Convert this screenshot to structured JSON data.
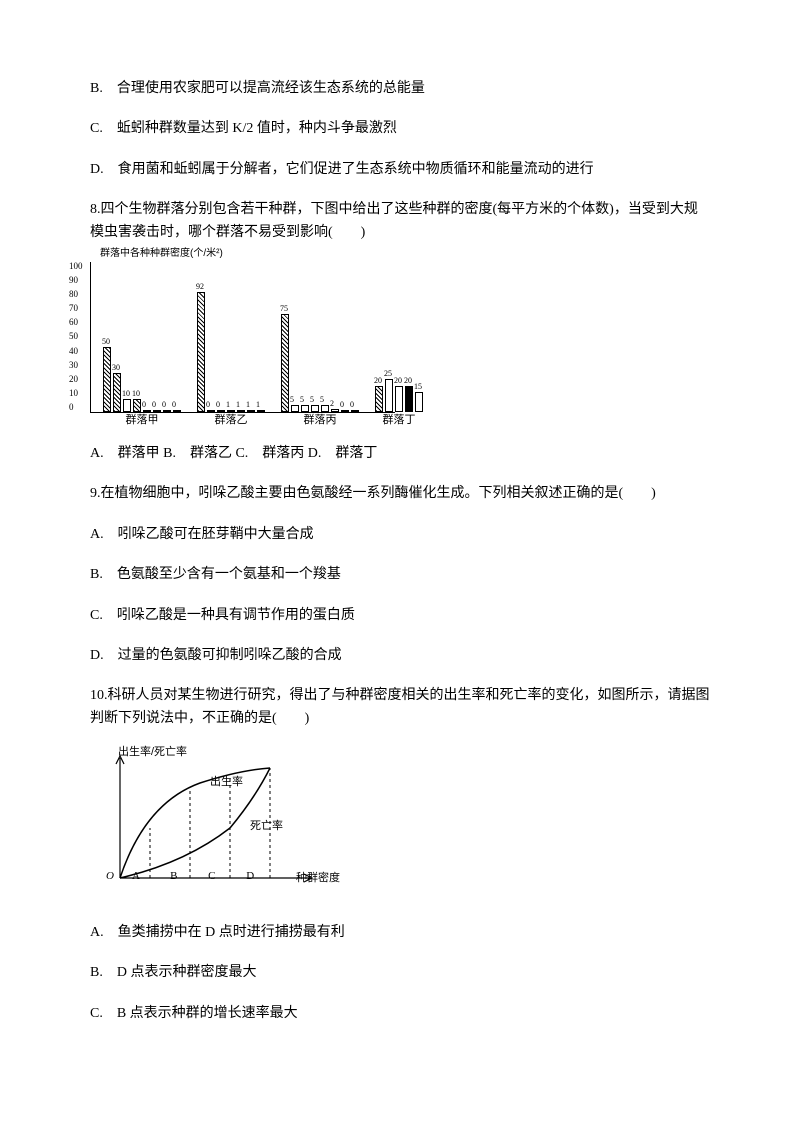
{
  "q7": {
    "options": {
      "B": "B.　合理使用农家肥可以提高流经该生态系统的总能量",
      "C": "C.　蚯蚓种群数量达到 K/2 值时，种内斗争最激烈",
      "D": "D.　食用菌和蚯蚓属于分解者，它们促进了生态系统中物质循环和能量流动的进行"
    }
  },
  "q8": {
    "stem": "8.四个生物群落分别包含若干种群，下图中给出了这些种群的密度(每平方米的个体数)，当受到大规模虫害袭击时，哪个群落不易受到影响(　　)",
    "chart": {
      "yaxis_label": "群落中各种种群密度(个/米²)",
      "ytick_max": 100,
      "groups": [
        {
          "label": "群落甲",
          "bars": [
            {
              "v": 50,
              "fill": "hatch"
            },
            {
              "v": 30,
              "fill": "hatch"
            },
            {
              "v": 10,
              "fill": "white"
            },
            {
              "v": 10,
              "fill": "hatch"
            },
            {
              "v": 0,
              "fill": "white"
            },
            {
              "v": 0,
              "fill": "white"
            },
            {
              "v": 0,
              "fill": "white"
            },
            {
              "v": 0,
              "fill": "white"
            }
          ]
        },
        {
          "label": "群落乙",
          "bars": [
            {
              "v": 92,
              "fill": "hatch"
            },
            {
              "v": 0,
              "fill": "white"
            },
            {
              "v": 0,
              "fill": "white"
            },
            {
              "v": 1,
              "fill": "white"
            },
            {
              "v": 1,
              "fill": "white"
            },
            {
              "v": 1,
              "fill": "white"
            },
            {
              "v": 1,
              "fill": "white"
            }
          ]
        },
        {
          "label": "群落丙",
          "bars": [
            {
              "v": 75,
              "fill": "hatch"
            },
            {
              "v": 5,
              "fill": "white"
            },
            {
              "v": 5,
              "fill": "white"
            },
            {
              "v": 5,
              "fill": "white"
            },
            {
              "v": 5,
              "fill": "white"
            },
            {
              "v": 2,
              "fill": "white"
            },
            {
              "v": 0,
              "fill": "white"
            },
            {
              "v": 0,
              "fill": "white"
            }
          ]
        },
        {
          "label": "群落丁",
          "bars": [
            {
              "v": 20,
              "fill": "hatch"
            },
            {
              "v": 25,
              "fill": "white"
            },
            {
              "v": 20,
              "fill": "white"
            },
            {
              "v": 20,
              "fill": "solid"
            },
            {
              "v": 15,
              "fill": "white"
            }
          ]
        }
      ]
    },
    "options_line": "A.　群落甲 B.　群落乙 C.　群落丙 D.　群落丁"
  },
  "q9": {
    "stem": "9.在植物细胞中，吲哚乙酸主要由色氨酸经一系列酶催化生成。下列相关叙述正确的是(　　)",
    "options": {
      "A": "A.　吲哚乙酸可在胚芽鞘中大量合成",
      "B": "B.　色氨酸至少含有一个氨基和一个羧基",
      "C": "C.　吲哚乙酸是一种具有调节作用的蛋白质",
      "D": "D.　过量的色氨酸可抑制吲哚乙酸的合成"
    }
  },
  "q10": {
    "stem": "10.科研人员对某生物进行研究，得出了与种群密度相关的出生率和死亡率的变化，如图所示，请据图判断下列说法中，不正确的是(　　)",
    "chart": {
      "yaxis_label": "出生率/死亡率",
      "xaxis_label": "种群密度",
      "birth_label": "出生率",
      "death_label": "死亡率",
      "origin": "O",
      "xticks": "A B C D"
    },
    "options": {
      "A": "A.　鱼类捕捞中在 D 点时进行捕捞最有利",
      "B": "B.　D 点表示种群密度最大",
      "C": "C.　B 点表示种群的增长速率最大"
    }
  }
}
